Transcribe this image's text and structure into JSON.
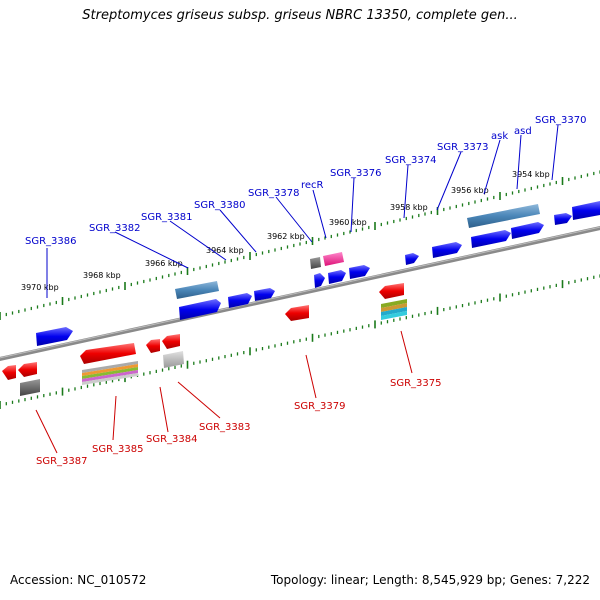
{
  "title": "Streptomyces griseus subsp. griseus NBRC 13350, complete gen...",
  "footer": {
    "accession": "Accession: NC_010572",
    "summary": "Topology: linear; Length: 8,545,929 bp; Genes: 7,222"
  },
  "colors": {
    "forward_gene": "#0000ee",
    "reverse_gene": "#ee0000",
    "forward_label": "#0000cc",
    "reverse_label": "#cc0000",
    "backbone": "#888888",
    "tick": "#1a7a1a",
    "rrna": "#4a86b8",
    "trna_pink": "#ff3399",
    "pseudo_gray": "#666666",
    "light_gray": "#bbbbbb"
  },
  "ticks": [
    {
      "label": "3970 kbp"
    },
    {
      "label": "3968 kbp"
    },
    {
      "label": "3966 kbp"
    },
    {
      "label": "3964 kbp"
    },
    {
      "label": "3962 kbp"
    },
    {
      "label": "3960 kbp"
    },
    {
      "label": "3958 kbp"
    },
    {
      "label": "3956 kbp"
    },
    {
      "label": "3954 kbp"
    }
  ],
  "forward_labels": [
    {
      "label": "SGR_3386"
    },
    {
      "label": "SGR_3382"
    },
    {
      "label": "SGR_3381"
    },
    {
      "label": "SGR_3380"
    },
    {
      "label": "SGR_3378"
    },
    {
      "label": "recR"
    },
    {
      "label": "SGR_3376"
    },
    {
      "label": "SGR_3374"
    },
    {
      "label": "SGR_3373"
    },
    {
      "label": "ask"
    },
    {
      "label": "asd"
    },
    {
      "label": "SGR_3370"
    }
  ],
  "reverse_labels": [
    {
      "label": "SGR_3387"
    },
    {
      "label": "SGR_3385"
    },
    {
      "label": "SGR_3384"
    },
    {
      "label": "SGR_3383"
    },
    {
      "label": "SGR_3379"
    },
    {
      "label": "SGR_3375"
    }
  ]
}
